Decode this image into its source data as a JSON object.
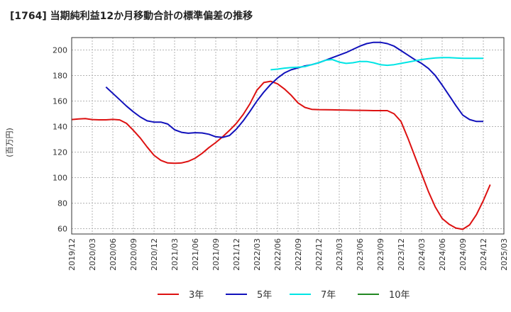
{
  "chart_data": {
    "type": "line",
    "title": "[1764]  当期純利益12か月移動合計の標準偏差の推移",
    "ylabel": "(百万円)",
    "xlabel": "",
    "ylim": [
      55,
      210
    ],
    "yticks": [
      60,
      80,
      100,
      120,
      140,
      160,
      180,
      200
    ],
    "xticks": [
      "2019/12",
      "2020/03",
      "2020/06",
      "2020/09",
      "2020/12",
      "2021/03",
      "2021/06",
      "2021/09",
      "2021/12",
      "2022/03",
      "2022/06",
      "2022/09",
      "2022/12",
      "2023/03",
      "2023/06",
      "2023/09",
      "2023/12",
      "2024/03",
      "2024/06",
      "2024/09",
      "2024/12",
      "2025/03"
    ],
    "grid": true,
    "legend_position": "bottom",
    "series": [
      {
        "name": "3年",
        "color": "#dd1111",
        "values": [
          145.5,
          146,
          146.2,
          145.5,
          145.3,
          145.3,
          145.6,
          145.2,
          142.5,
          137,
          131,
          124,
          117.5,
          113.5,
          111.5,
          111.2,
          111.5,
          112.8,
          115.2,
          119,
          123.5,
          127.5,
          132,
          137,
          142.5,
          149.5,
          158,
          168.5,
          174.5,
          175.5,
          173.5,
          169.5,
          164.5,
          158.5,
          155,
          153.5,
          153.3,
          153.2,
          153.1,
          153,
          152.9,
          152.8,
          152.7,
          152.6,
          152.5,
          152.5,
          152.5,
          150,
          144,
          131,
          117,
          103,
          89,
          77,
          68,
          63.5,
          60.5,
          59.5,
          63,
          71,
          82,
          94.5
        ]
      },
      {
        "name": "5年",
        "color": "#1111bb",
        "values": [
          null,
          null,
          null,
          null,
          null,
          171,
          166,
          161,
          156,
          151.5,
          147.5,
          144.5,
          143.5,
          143.5,
          142,
          137.5,
          135.5,
          134.8,
          135.2,
          135,
          134,
          132,
          131.5,
          133,
          138,
          144.5,
          152,
          160,
          167,
          173,
          178,
          182,
          184.5,
          186,
          187.5,
          188.5,
          190,
          192,
          194,
          196,
          198,
          200.5,
          203,
          205,
          206,
          206,
          205,
          203,
          199.5,
          196,
          192.5,
          189.5,
          185.5,
          180,
          172.5,
          164.5,
          156.5,
          149,
          145.5,
          144,
          144
        ]
      },
      {
        "name": "7年",
        "color": "#00e5e5",
        "values": [
          null,
          null,
          null,
          null,
          null,
          null,
          null,
          null,
          null,
          null,
          null,
          null,
          null,
          null,
          null,
          null,
          null,
          null,
          null,
          null,
          null,
          null,
          null,
          null,
          null,
          null,
          null,
          null,
          null,
          184.5,
          185,
          185.8,
          186.2,
          186.5,
          187,
          188.5,
          190,
          192,
          192.5,
          190.5,
          189.5,
          190,
          191,
          191,
          190,
          188.5,
          188,
          188.5,
          189.5,
          190.5,
          191.5,
          192.5,
          193.2,
          193.8,
          194,
          194,
          193.8,
          193.5,
          193.5,
          193.5,
          193.5
        ]
      },
      {
        "name": "10年",
        "color": "#228822",
        "values": []
      }
    ]
  }
}
